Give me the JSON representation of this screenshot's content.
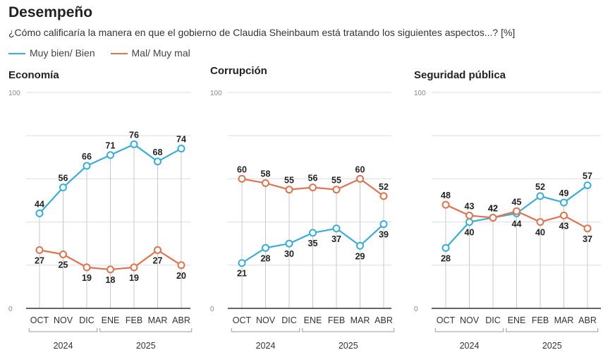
{
  "header": {
    "title": "Desempeño",
    "subtitle": "¿Cómo calificaría la manera en que el gobierno de Claudia Sheinbaum está tratando los siguientes aspectos...? [%]"
  },
  "colors": {
    "positive": "#3aaed8",
    "negative": "#e07350",
    "grid": "#dddddd",
    "axis": "#333333"
  },
  "legend": [
    {
      "label": "Muy bien/ Bien",
      "color": "#3aaed8"
    },
    {
      "label": "Mal/ Muy mal",
      "color": "#e07350"
    }
  ],
  "chart_data": [
    {
      "type": "line",
      "title": "Economía",
      "categories": [
        "OCT",
        "NOV",
        "DIC",
        "ENE",
        "FEB",
        "MAR",
        "ABR"
      ],
      "year_groups": [
        {
          "label": "2024",
          "from": 0,
          "to": 2
        },
        {
          "label": "2025",
          "from": 3,
          "to": 6
        }
      ],
      "ylim": [
        0,
        100
      ],
      "y_tick_labels": [
        "0",
        "100"
      ],
      "grid": true,
      "series": [
        {
          "name": "Muy bien/ Bien",
          "values": [
            44,
            56,
            66,
            71,
            76,
            68,
            74
          ]
        },
        {
          "name": "Mal/ Muy mal",
          "values": [
            27,
            25,
            19,
            18,
            19,
            27,
            20
          ]
        }
      ]
    },
    {
      "type": "line",
      "title": "Corrupción",
      "categories": [
        "OCT",
        "NOV",
        "DIC",
        "ENE",
        "FEB",
        "MAR",
        "ABR"
      ],
      "year_groups": [
        {
          "label": "2024",
          "from": 0,
          "to": 2
        },
        {
          "label": "2025",
          "from": 3,
          "to": 6
        }
      ],
      "ylim": [
        0,
        100
      ],
      "y_tick_labels": [
        "0",
        "100"
      ],
      "grid": true,
      "series": [
        {
          "name": "Muy bien/ Bien",
          "values": [
            21,
            28,
            30,
            35,
            37,
            29,
            39
          ]
        },
        {
          "name": "Mal/ Muy mal",
          "values": [
            60,
            58,
            55,
            56,
            55,
            60,
            52
          ]
        }
      ]
    },
    {
      "type": "line",
      "title": "Seguridad pública",
      "categories": [
        "OCT",
        "NOV",
        "DIC",
        "ENE",
        "FEB",
        "MAR",
        "ABR"
      ],
      "year_groups": [
        {
          "label": "2024",
          "from": 0,
          "to": 2
        },
        {
          "label": "2025",
          "from": 3,
          "to": 6
        }
      ],
      "ylim": [
        0,
        100
      ],
      "y_tick_labels": [
        "0",
        "100"
      ],
      "grid": true,
      "series": [
        {
          "name": "Muy bien/ Bien",
          "values": [
            28,
            40,
            42,
            44,
            52,
            49,
            57
          ]
        },
        {
          "name": "Mal/ Muy mal",
          "values": [
            48,
            43,
            42,
            45,
            40,
            43,
            37
          ]
        }
      ]
    }
  ]
}
